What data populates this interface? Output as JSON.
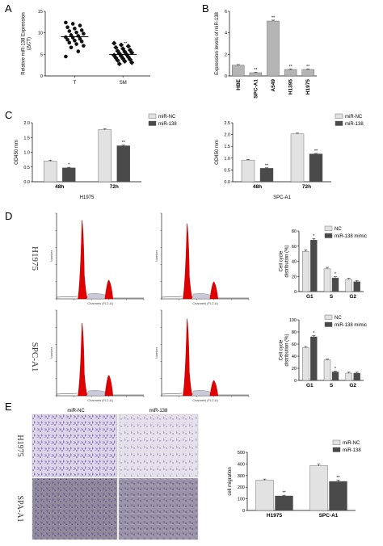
{
  "panels": {
    "A": "A",
    "B": "B",
    "C": "C",
    "D": "D",
    "E": "E"
  },
  "colors": {
    "light_bar": "#e2e2e2",
    "dark_bar": "#4a4a4a",
    "grey_bar": "#b5b5b5",
    "histogram_red": "#e00000"
  },
  "chart_data": [
    {
      "id": "A",
      "type": "scatter",
      "categories": [
        "T",
        "SM"
      ],
      "ylabel": "Relative miR-138 Expression\n(ΔCT)",
      "ylim": [
        0,
        15
      ],
      "yticks": [
        0,
        5,
        10,
        15
      ],
      "points": {
        "T": [
          12.4,
          12.1,
          11.7,
          11.3,
          11.0,
          10.6,
          10.4,
          10.1,
          9.8,
          9.5,
          9.3,
          9.0,
          8.9,
          8.6,
          8.4,
          8.2,
          8.0,
          7.7,
          7.4,
          7.0,
          6.6,
          5.7,
          4.5
        ],
        "SM": [
          7.6,
          7.2,
          6.9,
          6.6,
          6.3,
          6.0,
          5.8,
          5.6,
          5.4,
          5.2,
          5.0,
          4.8,
          4.6,
          4.4,
          4.2,
          4.0,
          3.8,
          3.6,
          3.4,
          3.1,
          2.8
        ]
      },
      "means": {
        "T": 9.1,
        "SM": 5.0
      },
      "annotations": [
        {
          "category": "SM",
          "text": "**"
        }
      ]
    },
    {
      "id": "B",
      "type": "bar",
      "categories": [
        "HBE",
        "SPC-A1",
        "A549",
        "H1395",
        "H1975"
      ],
      "values": [
        1.0,
        0.3,
        5.1,
        0.6,
        0.6
      ],
      "errors": [
        0.05,
        0.04,
        0.08,
        0.05,
        0.05
      ],
      "ylabel": "Expression levels of miR-138",
      "ylim": [
        0,
        6
      ],
      "yticks": [
        0,
        2,
        4,
        6
      ],
      "annotations": [
        "",
        "**",
        "**",
        "**",
        "**"
      ]
    },
    {
      "id": "C1",
      "type": "bar",
      "categories": [
        "48h",
        "72h"
      ],
      "series": [
        {
          "name": "miR-NC",
          "values": [
            0.7,
            1.77
          ],
          "errors": [
            0.03,
            0.03
          ]
        },
        {
          "name": "miR-138",
          "values": [
            0.47,
            1.22
          ],
          "errors": [
            0.02,
            0.02
          ]
        }
      ],
      "ylabel": "OD450 mm",
      "xlabel": "H1975",
      "ylim": [
        0,
        2.0
      ],
      "yticks": [
        0.0,
        0.5,
        1.0,
        1.5,
        2.0
      ],
      "yticklabels": [
        "0.0",
        "0.5",
        "1.0",
        "1.5",
        "2.0"
      ],
      "annotations": [
        [
          "",
          "*"
        ],
        [
          "",
          "**"
        ]
      ],
      "legend": "top-right"
    },
    {
      "id": "C2",
      "type": "bar",
      "categories": [
        "48h",
        "72h"
      ],
      "series": [
        {
          "name": "miR-NC",
          "values": [
            0.92,
            2.03
          ],
          "errors": [
            0.03,
            0.03
          ]
        },
        {
          "name": "miR-138",
          "values": [
            0.57,
            1.18
          ],
          "errors": [
            0.02,
            0.02
          ]
        }
      ],
      "ylabel": "OD450 mm",
      "xlabel": "SPC-A1",
      "ylim": [
        0,
        2.5
      ],
      "yticks": [
        0.0,
        0.5,
        1.0,
        1.5,
        2.0,
        2.5
      ],
      "yticklabels": [
        "0.0",
        "0.5",
        "1.0",
        "1.5",
        "2.0",
        "2.5"
      ],
      "annotations": [
        [
          "",
          "**"
        ],
        [
          "",
          "**"
        ]
      ],
      "legend": "top-right"
    },
    {
      "id": "D1",
      "type": "bar",
      "categories": [
        "G1",
        "S",
        "G2"
      ],
      "series": [
        {
          "name": "NC",
          "values": [
            53,
            30,
            16
          ],
          "errors": [
            2,
            2,
            1.5
          ]
        },
        {
          "name": "miR-138 mimic",
          "values": [
            68,
            18,
            13
          ],
          "errors": [
            2,
            1.5,
            1.5
          ]
        }
      ],
      "ylabel": "Cell cycle\ndistribution (%)",
      "ylim": [
        0,
        80
      ],
      "yticks": [
        0,
        20,
        40,
        60,
        80
      ],
      "annotations": [
        [
          "",
          "*"
        ],
        [
          "",
          "*"
        ],
        [
          "",
          ""
        ]
      ],
      "legend": "top-right"
    },
    {
      "id": "D2",
      "type": "bar",
      "categories": [
        "G1",
        "S",
        "G2"
      ],
      "series": [
        {
          "name": "NC",
          "values": [
            54,
            34,
            12
          ],
          "errors": [
            2,
            1.5,
            1.5
          ]
        },
        {
          "name": "miR-138 mimic",
          "values": [
            72,
            14,
            12
          ],
          "errors": [
            2,
            1.5,
            1.5
          ]
        }
      ],
      "ylabel": "Cell cycle\ndistribution (%)",
      "ylim": [
        0,
        100
      ],
      "yticks": [
        0,
        20,
        40,
        60,
        80,
        100
      ],
      "annotations": [
        [
          "",
          "*"
        ],
        [
          "",
          "*"
        ],
        [
          "",
          ""
        ]
      ],
      "legend": "top-right"
    },
    {
      "id": "E",
      "type": "bar",
      "categories": [
        "H1975",
        "SPC-A1"
      ],
      "series": [
        {
          "name": "miR-NC",
          "values": [
            260,
            385
          ],
          "errors": [
            10,
            12
          ]
        },
        {
          "name": "miR-138",
          "values": [
            125,
            250
          ],
          "errors": [
            6,
            10
          ]
        }
      ],
      "ylabel": "cell migration",
      "ylim": [
        0,
        500
      ],
      "yticks": [
        0,
        100,
        200,
        300,
        400,
        500
      ],
      "annotations": [
        [
          "",
          "**"
        ],
        [
          "",
          "**"
        ]
      ],
      "legend": "top-right"
    }
  ],
  "flow": {
    "row_labels": [
      "H1975",
      "SPC-A1"
    ],
    "x_axis_label": "Channels (FL2-A)",
    "y_axis_label": "Number"
  },
  "migration": {
    "col_labels": [
      "miR-NC",
      "miR-138"
    ],
    "row_labels": [
      "H1975",
      "SPA-A1"
    ]
  }
}
